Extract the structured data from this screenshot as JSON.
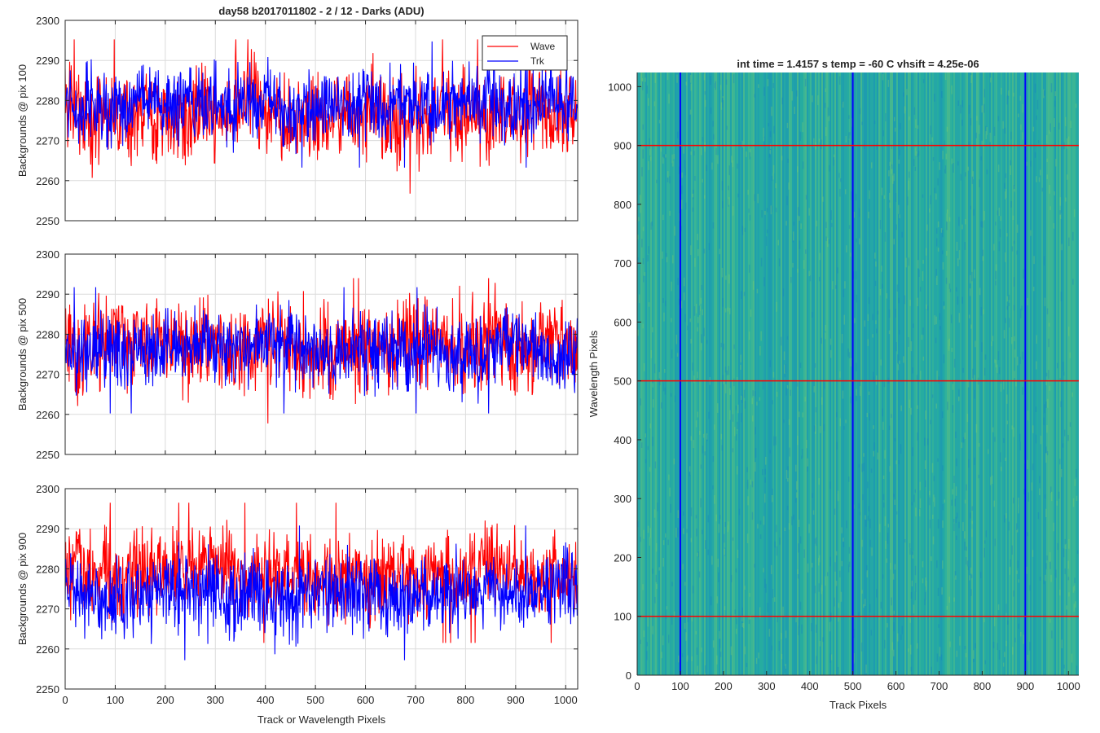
{
  "figure_title": "day58 b2017011802 - 2 / 12 - Darks (ADU)",
  "colors": {
    "wave": "#ff0000",
    "trk": "#0000ff",
    "grid": "#dcdcdc",
    "image_base": "#23a9a4"
  },
  "chart_data": [
    {
      "type": "line",
      "title": "day58 b2017011802 - 2 / 12 - Darks (ADU)",
      "xlabel": "",
      "ylabel": "Backgrounds @ pix 100",
      "xlim": [
        0,
        1024
      ],
      "ylim": [
        2250,
        2300
      ],
      "xticks": [
        0,
        100,
        200,
        300,
        400,
        500,
        600,
        700,
        800,
        900,
        1000
      ],
      "yticks": [
        2250,
        2260,
        2270,
        2280,
        2290,
        2300
      ],
      "grid": true,
      "legend": "top-right",
      "series": [
        {
          "name": "Wave",
          "color": "#ff0000",
          "mean": 2276,
          "noise": 5.5,
          "min": 2252,
          "max": 2299
        },
        {
          "name": "Trk",
          "color": "#0000ff",
          "mean": 2279,
          "noise": 4.5,
          "min": 2258,
          "max": 2297
        }
      ]
    },
    {
      "type": "line",
      "title": "",
      "xlabel": "",
      "ylabel": "Backgrounds @ pix 500",
      "xlim": [
        0,
        1024
      ],
      "ylim": [
        2250,
        2300
      ],
      "xticks": [
        0,
        100,
        200,
        300,
        400,
        500,
        600,
        700,
        800,
        900,
        1000
      ],
      "yticks": [
        2250,
        2260,
        2270,
        2280,
        2290,
        2300
      ],
      "grid": true,
      "series": [
        {
          "name": "Wave",
          "color": "#ff0000",
          "mean": 2277,
          "noise": 5.5,
          "min": 2250,
          "max": 2294
        },
        {
          "name": "Trk",
          "color": "#0000ff",
          "mean": 2276,
          "noise": 4.5,
          "min": 2254,
          "max": 2298
        }
      ]
    },
    {
      "type": "line",
      "title": "",
      "xlabel": "Track or Wavelength Pixels",
      "ylabel": "Backgrounds @ pix 900",
      "xlim": [
        0,
        1024
      ],
      "ylim": [
        2250,
        2300
      ],
      "xticks": [
        0,
        100,
        200,
        300,
        400,
        500,
        600,
        700,
        800,
        900,
        1000
      ],
      "yticks": [
        2250,
        2260,
        2270,
        2280,
        2290,
        2300
      ],
      "grid": true,
      "series": [
        {
          "name": "Wave",
          "color": "#ff0000",
          "mean": 2279,
          "noise": 5.0,
          "min": 2254,
          "max": 2297
        },
        {
          "name": "Trk",
          "color": "#0000ff",
          "mean": 2274,
          "noise": 4.8,
          "min": 2251,
          "max": 2299
        }
      ]
    },
    {
      "type": "heatmap",
      "title": "int time = 1.4157 s    temp = -60 C    vhsift = 4.25e-06",
      "xlabel": "Track Pixels",
      "ylabel": "Wavelength Pixels",
      "xlim": [
        0,
        1024
      ],
      "ylim": [
        0,
        1024
      ],
      "xticks": [
        0,
        100,
        200,
        300,
        400,
        500,
        600,
        700,
        800,
        900,
        1000
      ],
      "yticks": [
        0,
        100,
        200,
        300,
        400,
        500,
        600,
        700,
        800,
        900,
        1000
      ],
      "vertical_lines": {
        "color": "#0000ff",
        "x": [
          100,
          500,
          900
        ]
      },
      "horizontal_lines": {
        "color": "#ff0000",
        "y": [
          100,
          500,
          900
        ]
      }
    }
  ]
}
